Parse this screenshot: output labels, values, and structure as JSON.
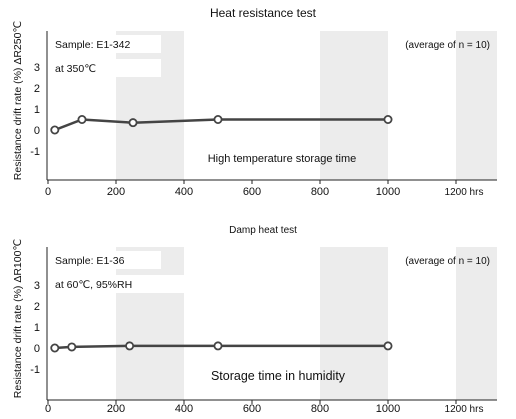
{
  "chart_data": [
    {
      "type": "line",
      "title": "Heat resistance test",
      "sample_label": "Sample: E1-342",
      "condition_label": "at 350℃",
      "note": "(average of n = 10)",
      "xlabel": "High temperature storage time",
      "ylabel": "Resistance drift rate (%)  ΔR250℃",
      "x_ticks": [
        "0",
        "200",
        "400",
        "600",
        "800",
        "1000",
        "1200 hrs"
      ],
      "y_ticks": [
        "3",
        "2",
        "1",
        "0",
        "-1"
      ],
      "xlim": [
        0,
        1300
      ],
      "ylim": [
        -2,
        4
      ],
      "grid": true,
      "marker": "open-circle",
      "series": [
        {
          "x": [
            20,
            100,
            250,
            500,
            1000
          ],
          "y": [
            0.0,
            0.5,
            0.35,
            0.5,
            0.5
          ]
        }
      ]
    },
    {
      "type": "line",
      "title": "Damp heat test",
      "sample_label": "Sample: E1-36",
      "condition_label": "at 60℃, 95%RH",
      "note": "(average of n = 10)",
      "xlabel": "Storage time in humidity",
      "ylabel": "Resistance drift rate (%)  ΔR100℃",
      "x_ticks": [
        "0",
        "200",
        "400",
        "600",
        "800",
        "1000",
        "1200 hrs"
      ],
      "y_ticks": [
        "3",
        "2",
        "1",
        "0",
        "-1"
      ],
      "xlim": [
        0,
        1300
      ],
      "ylim": [
        -2,
        4
      ],
      "grid": true,
      "marker": "open-circle",
      "series": [
        {
          "x": [
            20,
            70,
            240,
            500,
            1000
          ],
          "y": [
            0.0,
            0.05,
            0.1,
            0.1,
            0.1
          ]
        }
      ]
    }
  ],
  "colors": {
    "band": "#ececec",
    "line": "#444444",
    "axis": "#222222",
    "marker_fill": "#ffffff"
  }
}
